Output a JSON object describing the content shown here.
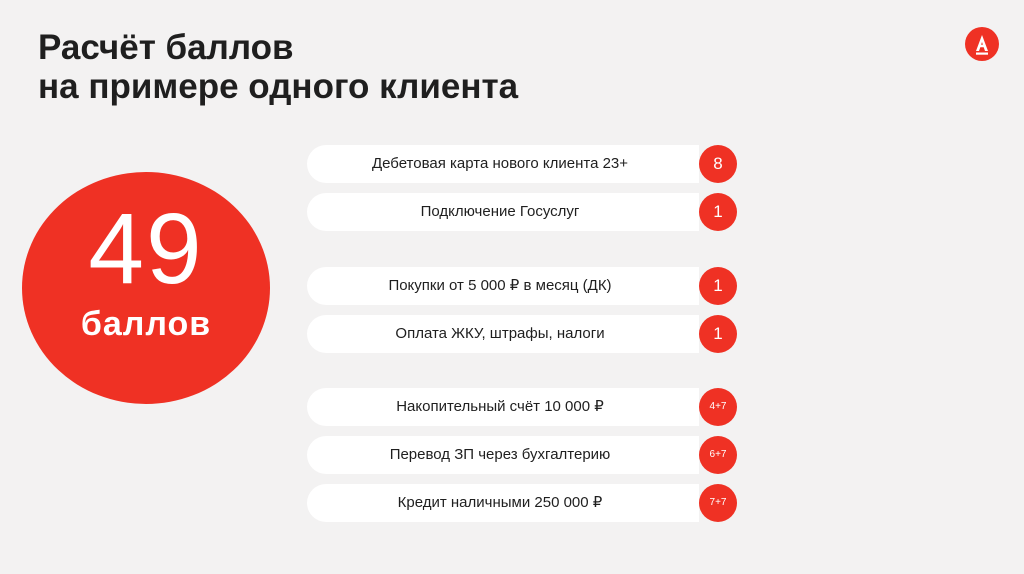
{
  "title": {
    "line1": "Расчёт баллов",
    "line2": "на примере одного клиента"
  },
  "logo": {
    "icon": "alfa-bank-logo",
    "letter": "А"
  },
  "total": {
    "value": "49",
    "unit": "баллов"
  },
  "rows": [
    {
      "label": "Дебетовая карта нового клиента  23+",
      "points": "8"
    },
    {
      "label": "Подключение Госуслуг",
      "points": "1"
    },
    {
      "label": "Покупки от 5 000 ₽ в месяц (ДК)",
      "points": "1"
    },
    {
      "label": "Оплата ЖКУ, штрафы, налоги",
      "points": "1"
    },
    {
      "label": "Накопительный счёт 10 000 ₽",
      "points": "4+7"
    },
    {
      "label": "Перевод ЗП через бухгалтерию",
      "points": "6+7"
    },
    {
      "label": "Кредит наличными 250 000 ₽",
      "points": "7+7"
    }
  ],
  "colors": {
    "accent": "#ef3124",
    "background": "#f3f2f2",
    "card": "#ffffff",
    "text": "#1f1f1f"
  }
}
